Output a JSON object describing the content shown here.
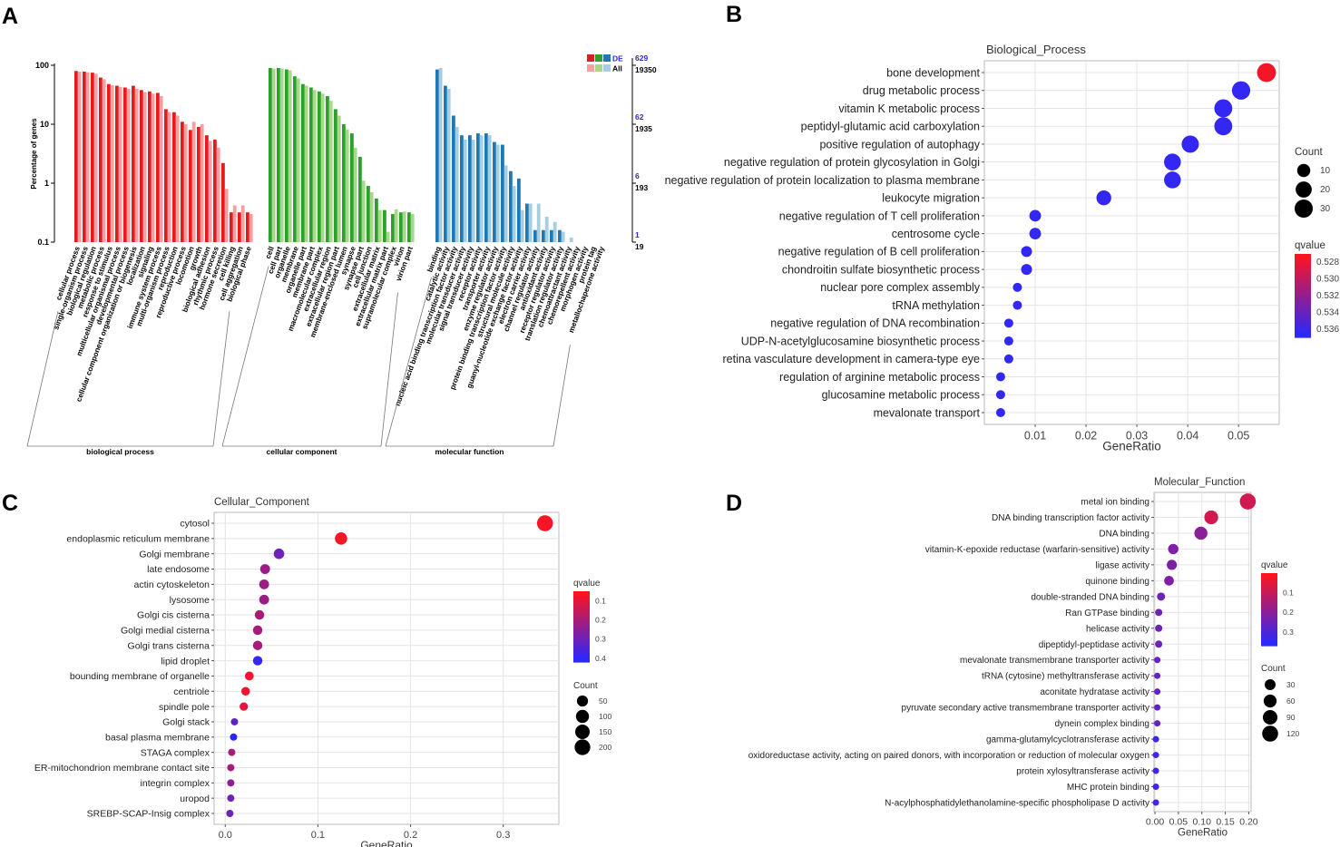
{
  "panel_labels": [
    "A",
    "B",
    "C",
    "D"
  ],
  "chart_data": [
    {
      "panel": "A",
      "type": "bar",
      "ylabel": "Percentage of genes",
      "yscale": "log",
      "ylim": [
        0.1,
        100
      ],
      "yticks": [
        "100",
        "10",
        "1",
        "0.1"
      ],
      "right_axis": [
        {
          "de": "629",
          "all": "19350"
        },
        {
          "de": "62",
          "all": "1935"
        },
        {
          "de": "6",
          "all": "193"
        },
        {
          "de": "1",
          "all": "19"
        }
      ],
      "legend": [
        {
          "label": "DE",
          "colors": [
            "#e41a1c",
            "#2ca02c",
            "#1f77b4"
          ]
        },
        {
          "label": "All",
          "colors": [
            "#f4a0a0",
            "#a8d88a",
            "#a6cee3"
          ]
        }
      ],
      "groups": [
        {
          "name": "biological process",
          "color": "#e41a1c",
          "light": "#f4a0a0",
          "categories": [
            "cellular process",
            "single-organism process",
            "biological regulation",
            "metabolic process",
            "response to stimulus",
            "multicellular organismal process",
            "developmental process",
            "cellular component organization or biogenesis",
            "localization",
            "signaling",
            "immune system process",
            "multi-organism process",
            "reproduction",
            "reproductive process",
            "locomotion",
            "growth",
            "biological adhesion",
            "rhythmic process",
            "hormone secretion",
            "cell killing",
            "cell aggregation",
            "biological phase"
          ],
          "de": [
            80,
            78,
            75,
            62,
            48,
            45,
            42,
            45,
            38,
            36,
            34,
            18,
            16,
            11,
            8,
            9,
            6.5,
            5.5,
            2.2,
            0.32,
            0.32,
            0.32
          ],
          "all": [
            78,
            76,
            72,
            58,
            46,
            43,
            40,
            40,
            35,
            33,
            30,
            16,
            14,
            10,
            11,
            10,
            5.2,
            4,
            0.8,
            0.42,
            0.42,
            0.3
          ]
        },
        {
          "name": "cellular component",
          "color": "#2ca02c",
          "light": "#a8d88a",
          "categories": [
            "cell",
            "cell part",
            "organelle",
            "membrane",
            "organelle part",
            "membrane part",
            "macromolecular complex",
            "extracellular region",
            "extracellular region part",
            "membrane-enclosed lumen",
            "synapse",
            "synapse part",
            "cell junction",
            "extracellular matrix",
            "extracellular matrix part",
            "supramolecular complex",
            "virion",
            "virion part"
          ],
          "de": [
            90,
            90,
            85,
            65,
            48,
            42,
            36,
            30,
            18,
            10,
            7,
            2.8,
            0.9,
            0.55,
            0.35,
            0.3,
            0.32,
            0.32
          ],
          "all": [
            88,
            88,
            82,
            60,
            45,
            38,
            33,
            25,
            14,
            8.2,
            4,
            1.1,
            0.7,
            0.35,
            0.15,
            0.36,
            0.33,
            0.3
          ]
        },
        {
          "name": "molecular function",
          "color": "#1f77b4",
          "light": "#a6cee3",
          "categories": [
            "binding",
            "catalytic activity",
            "nucleic acid binding transcription factor activity",
            "molecular transducer activity",
            "signal transducer activity",
            "receptor activity",
            "transporter activity",
            "enzyme regulator activity",
            "protein binding transcription factor activity",
            "structural molecule activity",
            "guanyl-nucleotide exchange factor activity",
            "electron carrier activity",
            "channel regulator activity",
            "antioxidant activity",
            "receptor regulator activity",
            "translation regulator activity",
            "chemoattractant activity",
            "chemorepellent activity",
            "morphogen activity",
            "protein tag",
            "metallochaperone activity"
          ],
          "de": [
            85,
            45,
            14,
            6.5,
            6.5,
            7,
            7,
            5,
            4.5,
            1.6,
            1.2,
            0.45,
            0.16,
            0.16,
            0.16,
            0.16,
            0.1,
            0.1,
            0.1,
            0.1,
            0.1
          ],
          "all": [
            90,
            40,
            9,
            5.5,
            5.5,
            6.5,
            6.5,
            4.5,
            2,
            0.9,
            0.35,
            0.45,
            0.45,
            0.27,
            0.22,
            0.15,
            0.12,
            0.1,
            0.1,
            0.1,
            0.1
          ]
        }
      ]
    },
    {
      "panel": "B",
      "type": "scatter",
      "title": "Biological_Process",
      "xlabel": "GeneRatio",
      "xlim": [
        0.0,
        0.058
      ],
      "xticks": [
        "0.01",
        "0.02",
        "0.03",
        "0.04",
        "0.05"
      ],
      "xtick_values": [
        0.01,
        0.02,
        0.03,
        0.04,
        0.05
      ],
      "color_range": [
        0.527,
        0.537
      ],
      "count_range": [
        5,
        35
      ],
      "legend_count_title": "Count",
      "legend_count": [
        "10",
        "20",
        "30"
      ],
      "legend_count_values": [
        10,
        20,
        30
      ],
      "legend_color_title": "qvalue",
      "legend_color": [
        "0.528",
        "0.530",
        "0.532",
        "0.534",
        "0.536"
      ],
      "legend_color_values": [
        0.528,
        0.53,
        0.532,
        0.534,
        0.536
      ],
      "terms": [
        "bone development",
        "drug metabolic process",
        "vitamin K metabolic process",
        "peptidyl-glutamic acid carboxylation",
        "positive regulation of autophagy",
        "negative regulation of protein glycosylation in Golgi",
        "negative regulation of protein localization to plasma membrane",
        "leukocyte migration",
        "negative regulation of T cell proliferation",
        "centrosome cycle",
        "negative regulation of B cell proliferation",
        "chondroitin sulfate biosynthetic process",
        "nuclear pore complex assembly",
        "tRNA methylation",
        "negative regulation of DNA recombination",
        "UDP-N-acetylglucosamine biosynthetic process",
        "retina vasculature development in camera-type eye",
        "regulation of arginine metabolic process",
        "glucosamine metabolic process",
        "mevalonate transport"
      ],
      "gene_ratio": [
        0.0555,
        0.0505,
        0.047,
        0.047,
        0.0405,
        0.037,
        0.037,
        0.0235,
        0.01,
        0.01,
        0.0083,
        0.0083,
        0.0065,
        0.0065,
        0.0048,
        0.0048,
        0.0048,
        0.0032,
        0.0032,
        0.0032
      ],
      "count": [
        34,
        31,
        29,
        29,
        25,
        23,
        23,
        15,
        7,
        7,
        6,
        6,
        5,
        5,
        4,
        4,
        4,
        3,
        3,
        3
      ],
      "qvalue": [
        0.5275,
        0.5365,
        0.5365,
        0.5365,
        0.5365,
        0.5365,
        0.5365,
        0.5365,
        0.5365,
        0.5365,
        0.5365,
        0.5365,
        0.5365,
        0.5365,
        0.5365,
        0.5365,
        0.5365,
        0.5365,
        0.5365,
        0.5365
      ]
    },
    {
      "panel": "C",
      "type": "scatter",
      "title": "Cellular_Component",
      "xlabel": "GeneRatio",
      "xlim": [
        -0.012,
        0.36
      ],
      "xticks": [
        "0.0",
        "0.1",
        "0.2",
        "0.3"
      ],
      "xtick_values": [
        0.0,
        0.1,
        0.2,
        0.3
      ],
      "color_range": [
        0.05,
        0.42
      ],
      "count_range": [
        10,
        230
      ],
      "legend_color_title": "qvalue",
      "legend_color": [
        "0.1",
        "0.2",
        "0.3",
        "0.4"
      ],
      "legend_color_values": [
        0.1,
        0.2,
        0.3,
        0.4
      ],
      "legend_count_title": "Count",
      "legend_count": [
        "50",
        "100",
        "150",
        "200"
      ],
      "legend_count_values": [
        50,
        100,
        150,
        200
      ],
      "terms": [
        "cytosol",
        "endoplasmic reticulum membrane",
        "Golgi membrane",
        "late endosome",
        "actin cytoskeleton",
        "lysosome",
        "Golgi cis cisterna",
        "Golgi medial cisterna",
        "Golgi trans cisterna",
        "lipid droplet",
        "bounding membrane of organelle",
        "centriole",
        "spindle pole",
        "Golgi stack",
        "basal plasma membrane",
        "STAGA complex",
        "ER-mitochondrion membrane contact site",
        "integrin complex",
        "uropod",
        "SREBP-SCAP-Insig complex"
      ],
      "gene_ratio": [
        0.345,
        0.125,
        0.058,
        0.043,
        0.042,
        0.042,
        0.037,
        0.035,
        0.035,
        0.035,
        0.026,
        0.022,
        0.02,
        0.01,
        0.009,
        0.007,
        0.006,
        0.006,
        0.006,
        0.005
      ],
      "count": [
        210,
        78,
        38,
        28,
        27,
        27,
        24,
        23,
        23,
        23,
        17,
        15,
        13,
        8,
        7,
        5,
        5,
        5,
        5,
        4
      ],
      "qvalue": [
        0.06,
        0.06,
        0.3,
        0.22,
        0.22,
        0.22,
        0.2,
        0.2,
        0.2,
        0.4,
        0.08,
        0.08,
        0.1,
        0.32,
        0.42,
        0.2,
        0.2,
        0.25,
        0.3,
        0.3
      ]
    },
    {
      "panel": "D",
      "type": "scatter",
      "title": "Molecular_Function",
      "xlabel": "GeneRatio",
      "xlim": [
        -0.002,
        0.205
      ],
      "xticks": [
        "0.00",
        "0.05",
        "0.10",
        "0.15",
        "0.20"
      ],
      "xtick_values": [
        0.0,
        0.05,
        0.1,
        0.15,
        0.2
      ],
      "color_range": [
        0.0,
        0.37
      ],
      "count_range": [
        5,
        130
      ],
      "legend_color_title": "qvalue",
      "legend_color": [
        "0.1",
        "0.2",
        "0.3"
      ],
      "legend_color_values": [
        0.1,
        0.2,
        0.3
      ],
      "legend_count_title": "Count",
      "legend_count": [
        "30",
        "60",
        "90",
        "120"
      ],
      "legend_count_values": [
        30,
        60,
        90,
        120
      ],
      "terms": [
        "metal ion binding",
        "DNA binding transcription factor activity",
        "DNA binding",
        "vitamin-K-epoxide reductase (warfarin-sensitive) activity",
        "ligase activity",
        "quinone binding",
        "double-stranded DNA binding",
        "Ran GTPase binding",
        "helicase activity",
        "dipeptidyl-peptidase activity",
        "mevalonate transmembrane transporter activity",
        "tRNA (cytosine) methyltransferase activity",
        "aconitate hydratase activity",
        "pyruvate secondary active transmembrane transporter activity",
        "dynein complex binding",
        "gamma-glutamylcyclotransferase activity",
        "oxidoreductase activity, acting on paired donors, with incorporation or reduction of molecular oxygen",
        "protein xylosyltransferase activity",
        "MHC protein binding",
        "N-acylphosphatidylethanolamine-specific phospholipase D activity"
      ],
      "gene_ratio": [
        0.198,
        0.12,
        0.098,
        0.039,
        0.036,
        0.03,
        0.013,
        0.008,
        0.008,
        0.008,
        0.005,
        0.005,
        0.005,
        0.005,
        0.005,
        0.002,
        0.002,
        0.002,
        0.002,
        0.002
      ],
      "count": [
        122,
        75,
        62,
        25,
        23,
        19,
        9,
        6,
        6,
        6,
        4,
        4,
        4,
        4,
        4,
        2,
        2,
        2,
        2,
        2
      ],
      "qvalue": [
        0.08,
        0.08,
        0.2,
        0.22,
        0.22,
        0.22,
        0.25,
        0.25,
        0.25,
        0.25,
        0.27,
        0.27,
        0.27,
        0.27,
        0.27,
        0.33,
        0.33,
        0.33,
        0.33,
        0.33
      ]
    }
  ]
}
